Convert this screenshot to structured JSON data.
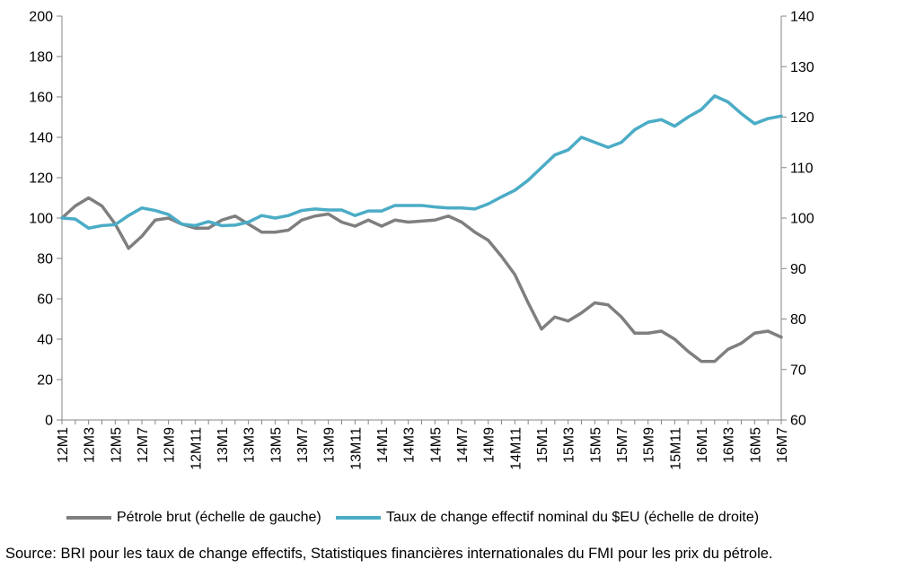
{
  "chart_data": {
    "type": "line",
    "title": "",
    "x": [
      "12M1",
      "12M2",
      "12M3",
      "12M4",
      "12M5",
      "12M6",
      "12M7",
      "12M8",
      "12M9",
      "12M10",
      "12M11",
      "12M12",
      "13M1",
      "13M2",
      "13M3",
      "13M4",
      "13M5",
      "13M6",
      "13M7",
      "13M8",
      "13M9",
      "13M10",
      "13M11",
      "13M12",
      "14M1",
      "14M2",
      "14M3",
      "14M4",
      "14M5",
      "14M6",
      "14M7",
      "14M8",
      "14M9",
      "14M10",
      "14M11",
      "14M12",
      "15M1",
      "15M2",
      "15M3",
      "15M4",
      "15M5",
      "15M6",
      "15M7",
      "15M8",
      "15M9",
      "15M10",
      "15M11",
      "15M12",
      "16M1",
      "16M2",
      "16M3",
      "16M4",
      "16M5",
      "16M6",
      "16M7"
    ],
    "tick_labels": [
      "12M1",
      "12M3",
      "12M5",
      "12M7",
      "12M9",
      "12M11",
      "13M1",
      "13M3",
      "13M5",
      "13M7",
      "13M9",
      "13M11",
      "14M1",
      "14M3",
      "14M5",
      "14M7",
      "14M9",
      "14M11",
      "15M1",
      "15M3",
      "15M5",
      "15M7",
      "15M9",
      "15M11",
      "16M1",
      "16M3",
      "16M5",
      "16M7"
    ],
    "y_left": {
      "ylim": [
        0,
        200
      ],
      "ticks": [
        0,
        20,
        40,
        60,
        80,
        100,
        120,
        140,
        160,
        180,
        200
      ]
    },
    "y_right": {
      "ylim": [
        60,
        140
      ],
      "ticks": [
        60,
        70,
        80,
        90,
        100,
        110,
        120,
        130,
        140
      ]
    },
    "grid": false,
    "legend_placement": "bottom",
    "series": [
      {
        "name": "Pétrole brut (échelle de gauche)",
        "axis": "left",
        "color": "#7f7f7f",
        "values": [
          100,
          106,
          110,
          106,
          97,
          85,
          91,
          99,
          100,
          97,
          95,
          95,
          99,
          101,
          97,
          93,
          93,
          94,
          99,
          101,
          102,
          98,
          96,
          99,
          96,
          99,
          98,
          98.5,
          99,
          101,
          98,
          93,
          89,
          81,
          72,
          58,
          45,
          51,
          49,
          53,
          58,
          57,
          51,
          43,
          43,
          44,
          40,
          34,
          29,
          29,
          35,
          38,
          43,
          44,
          41
        ]
      },
      {
        "name": "Taux de change effectif nominal du $EU (échelle de droite)",
        "axis": "right",
        "color": "#4bacc6",
        "values": [
          100,
          99.8,
          98,
          98.5,
          98.7,
          100.5,
          102,
          101.5,
          100.7,
          98.8,
          98.5,
          99.3,
          98.5,
          98.6,
          99.2,
          100.5,
          100,
          100.5,
          101.5,
          101.8,
          101.6,
          101.6,
          100.5,
          101.4,
          101.4,
          102.5,
          102.5,
          102.5,
          102.2,
          102,
          102,
          101.8,
          102.8,
          104.2,
          105.5,
          107.5,
          110,
          112.5,
          113.5,
          116,
          115,
          114,
          115,
          117.5,
          119,
          119.5,
          118.2,
          120,
          121.5,
          124.2,
          123,
          120.7,
          118.7,
          119.7,
          120.2
        ]
      }
    ]
  },
  "source_text": "Source: BRI pour les taux de change effectifs, Statistiques financières internationales du FMI pour les prix du pétrole."
}
